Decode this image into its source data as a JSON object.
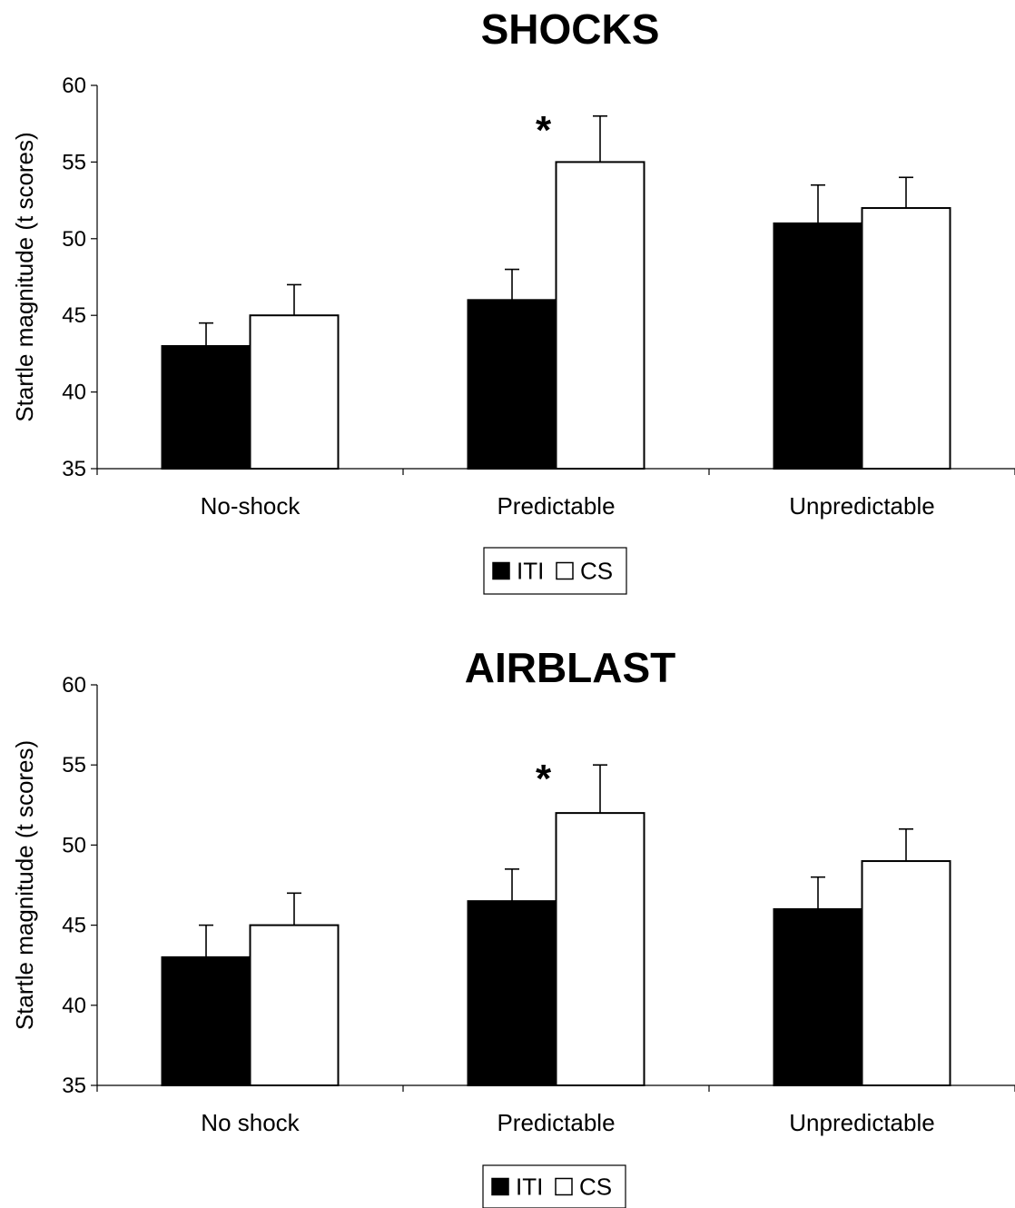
{
  "chart_data": [
    {
      "type": "bar",
      "title": "SHOCKS",
      "ylabel": "Startle magnitude (t scores)",
      "xlabel": "",
      "ylim": [
        35,
        60
      ],
      "yticks": [
        "35",
        "40",
        "45",
        "50",
        "55",
        "60"
      ],
      "categories": [
        "No-shock",
        "Predictable",
        "Unpredictable"
      ],
      "series": [
        {
          "name": "ITI",
          "color": "#000000",
          "values": [
            43,
            46,
            51
          ],
          "errors": [
            1.5,
            2,
            2.5
          ]
        },
        {
          "name": "CS",
          "color": "#ffffff",
          "values": [
            45,
            55,
            52
          ],
          "errors": [
            2,
            3,
            2
          ]
        }
      ],
      "annotations": [
        {
          "text": "*",
          "category": "Predictable"
        }
      ],
      "legend": {
        "position": "bottom",
        "markers": [
          "■",
          "□"
        ]
      }
    },
    {
      "type": "bar",
      "title": "AIRBLAST",
      "ylabel": "Startle magnitude (t scores)",
      "xlabel": "",
      "ylim": [
        35,
        60
      ],
      "yticks": [
        "35",
        "40",
        "45",
        "50",
        "55",
        "60"
      ],
      "categories": [
        "No shock",
        "Predictable",
        "Unpredictable"
      ],
      "series": [
        {
          "name": "ITI",
          "color": "#000000",
          "values": [
            43,
            46.5,
            46
          ],
          "errors": [
            2,
            2,
            2
          ]
        },
        {
          "name": "CS",
          "color": "#ffffff",
          "values": [
            45,
            52,
            49
          ],
          "errors": [
            2,
            3,
            2
          ]
        }
      ],
      "annotations": [
        {
          "text": "*",
          "category": "Predictable"
        }
      ],
      "legend": {
        "position": "bottom",
        "markers": [
          "■",
          "□"
        ]
      }
    }
  ]
}
